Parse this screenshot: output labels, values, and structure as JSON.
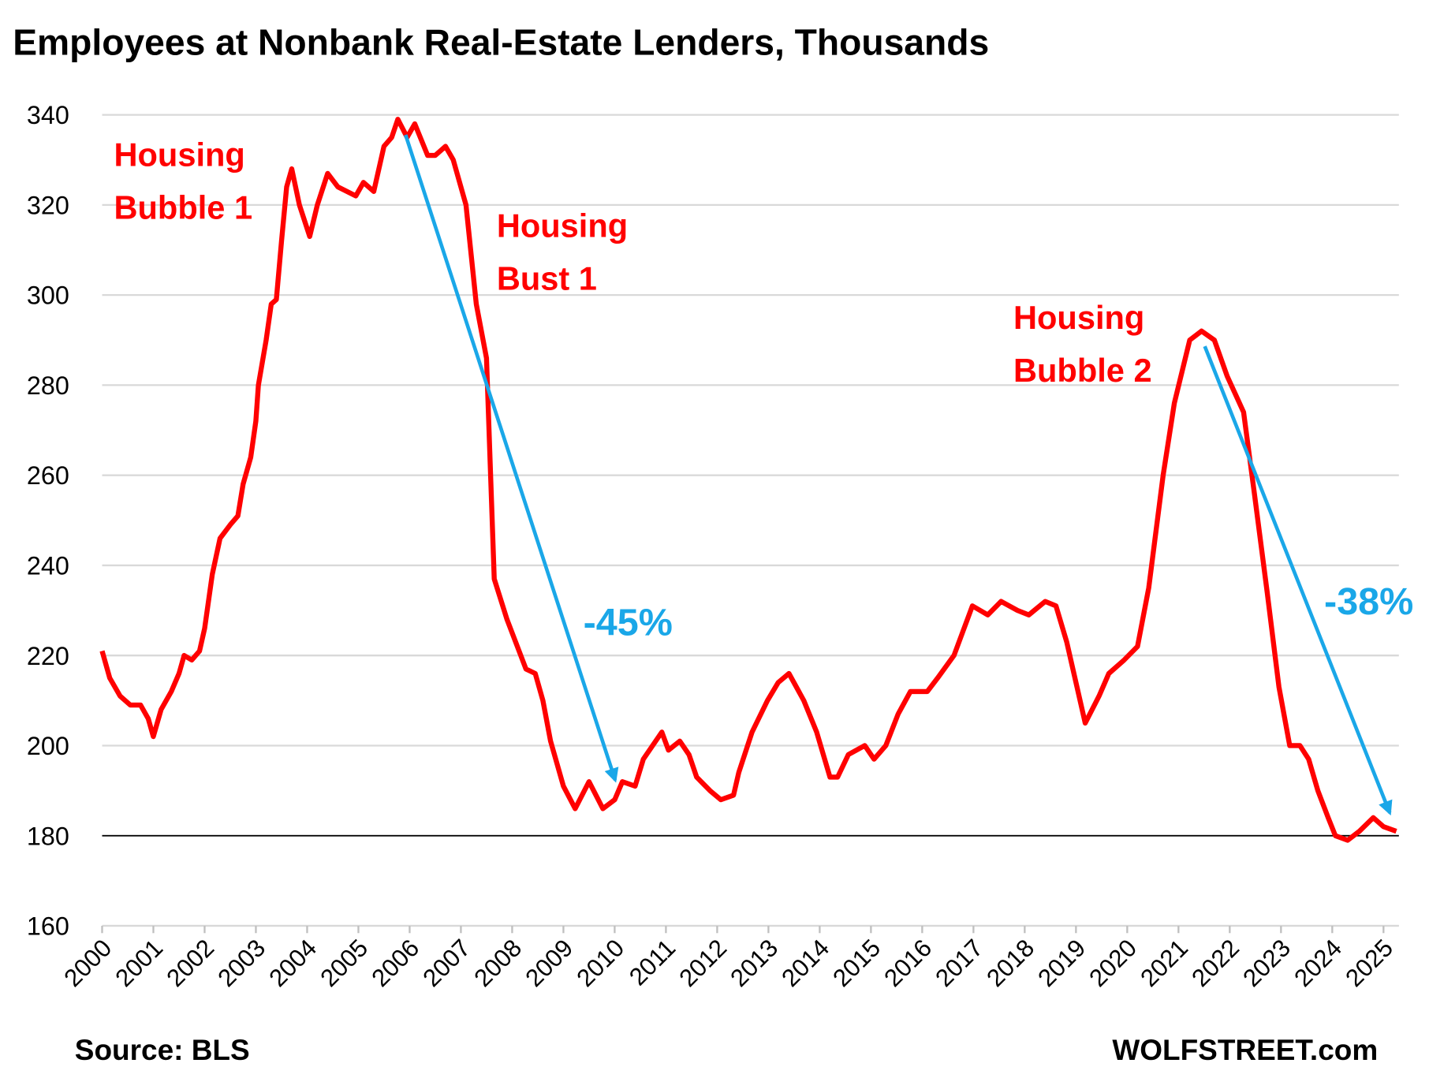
{
  "chart_data": {
    "type": "line",
    "title": "Employees at Nonbank Real-Estate Lenders, Thousands",
    "source": "Source: BLS",
    "brand": "WOLFSTREET.com",
    "annotations": [
      {
        "text": [
          "Housing",
          "Bubble 1"
        ],
        "color": "#ff0000"
      },
      {
        "text": [
          "Housing",
          "Bust 1"
        ],
        "color": "#ff0000"
      },
      {
        "text": [
          "Housing",
          "Bubble 2"
        ],
        "color": "#ff0000"
      },
      {
        "text": [
          "-45%"
        ],
        "color": "#1aa7e8"
      },
      {
        "text": [
          "-38%"
        ],
        "color": "#1aa7e8"
      }
    ],
    "xlim": [
      2000,
      2025.3
    ],
    "xticks": [
      2000,
      2001,
      2002,
      2003,
      2004,
      2005,
      2006,
      2007,
      2008,
      2009,
      2010,
      2011,
      2012,
      2013,
      2014,
      2015,
      2016,
      2017,
      2018,
      2019,
      2020,
      2021,
      2022,
      2023,
      2024,
      2025
    ],
    "ylim": [
      160,
      340
    ],
    "yticks": [
      160,
      180,
      200,
      220,
      240,
      260,
      280,
      300,
      320,
      340
    ],
    "grid": true,
    "baseline": 180,
    "series": [
      {
        "name": "Employees",
        "color": "#ff0000",
        "x": [
          2000.0,
          2000.15,
          2000.35,
          2000.55,
          2000.75,
          2000.9,
          2001.0,
          2001.15,
          2001.35,
          2001.5,
          2001.6,
          2001.75,
          2001.9,
          2002.0,
          2002.15,
          2002.3,
          2002.5,
          2002.65,
          2002.75,
          2002.9,
          2003.0,
          2003.05,
          2003.2,
          2003.3,
          2003.4,
          2003.5,
          2003.6,
          2003.7,
          2003.85,
          2004.05,
          2004.2,
          2004.4,
          2004.6,
          2004.95,
          2005.1,
          2005.3,
          2005.5,
          2005.65,
          2005.77,
          2005.95,
          2006.1,
          2006.35,
          2006.5,
          2006.7,
          2006.85,
          2007.1,
          2007.3,
          2007.5,
          2007.65,
          2007.9,
          2008.27,
          2008.45,
          2008.6,
          2008.75,
          2009.0,
          2009.23,
          2009.5,
          2009.77,
          2010.0,
          2010.15,
          2010.4,
          2010.56,
          2010.92,
          2011.05,
          2011.27,
          2011.45,
          2011.6,
          2011.86,
          2012.07,
          2012.32,
          2012.42,
          2012.68,
          2012.98,
          2013.19,
          2013.4,
          2013.69,
          2013.94,
          2014.2,
          2014.35,
          2014.56,
          2014.88,
          2015.06,
          2015.29,
          2015.53,
          2015.77,
          2016.1,
          2016.3,
          2016.62,
          2016.98,
          2017.28,
          2017.54,
          2017.86,
          2018.08,
          2018.4,
          2018.61,
          2018.82,
          2019.18,
          2019.45,
          2019.64,
          2019.94,
          2020.2,
          2020.42,
          2020.7,
          2020.92,
          2021.22,
          2021.45,
          2021.7,
          2021.95,
          2022.27,
          2022.48,
          2022.73,
          2022.96,
          2023.17,
          2023.37,
          2023.54,
          2023.72,
          2023.92,
          2024.06,
          2024.3,
          2024.53,
          2024.8,
          2025.0,
          2025.25
        ],
        "values": [
          221,
          215,
          211,
          209,
          209,
          206,
          202,
          208,
          212,
          216,
          220,
          219,
          221,
          226,
          238,
          246,
          249,
          251,
          258,
          264,
          272,
          280,
          290,
          298,
          299,
          312,
          324,
          328,
          320,
          313,
          320,
          327,
          324,
          322,
          325,
          323,
          333,
          335,
          339,
          335,
          338,
          331,
          331,
          333,
          330,
          320,
          298,
          286,
          237,
          228,
          217,
          216,
          210,
          201,
          191,
          186,
          192,
          186,
          188,
          192,
          191,
          197,
          203,
          199,
          201,
          198,
          193,
          190,
          188,
          189,
          194,
          203,
          210,
          214,
          216,
          210,
          203,
          193,
          193,
          198,
          200,
          197,
          200,
          207,
          212,
          212,
          215,
          220,
          231,
          229,
          232,
          230,
          229,
          232,
          231,
          223,
          205,
          211,
          216,
          219,
          222,
          235,
          260,
          276,
          290,
          292,
          290,
          282,
          274,
          256,
          234,
          213,
          200,
          200,
          197,
          190,
          184,
          180,
          179,
          181,
          184,
          182,
          181
        ]
      }
    ]
  }
}
